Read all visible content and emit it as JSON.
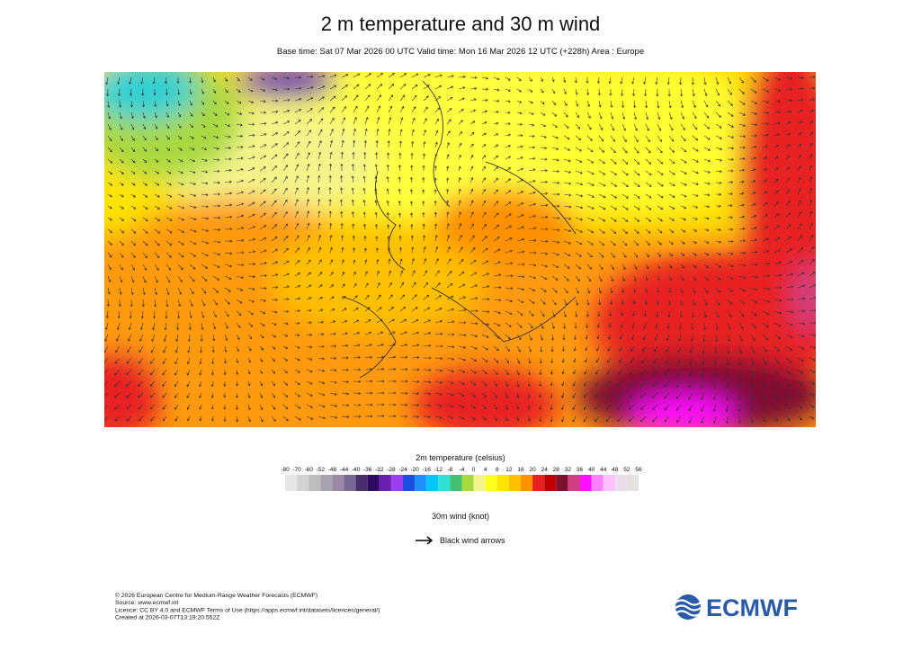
{
  "header": {
    "title": "2 m temperature and 30 m wind",
    "subtitle": "Base time: Sat 07 Mar 2026 00 UTC Valid time: Mon 16 Mar 2026 12 UTC (+228h) Area : Europe"
  },
  "legend": {
    "temperature_title": "2m temperature (celsius)",
    "ticks": [
      -80,
      -70,
      -60,
      -52,
      -48,
      -44,
      -40,
      -36,
      -32,
      -28,
      -24,
      -20,
      -16,
      -12,
      -8,
      -4,
      0,
      4,
      8,
      12,
      16,
      20,
      24,
      28,
      32,
      36,
      40,
      44,
      48,
      52,
      56
    ],
    "colors": [
      "#e6e6e6",
      "#d2d2d2",
      "#bdbdbd",
      "#aaa2b2",
      "#9a8aa8",
      "#7a6896",
      "#4a2e6c",
      "#2e0a62",
      "#6a1fb0",
      "#9a40f0",
      "#1a50e0",
      "#1e90ff",
      "#00c8ff",
      "#30e0d0",
      "#40c070",
      "#a8d840",
      "#f4f48a",
      "#ffff20",
      "#ffe400",
      "#ffc000",
      "#ff9000",
      "#e82020",
      "#c00000",
      "#801030",
      "#d04080",
      "#ff10ff",
      "#ff80ff",
      "#ffc0ff",
      "#eadcea",
      "#e2e2e2"
    ],
    "wind_title": "30m wind (knot)",
    "wind_arrow_label": "Black wind arrows"
  },
  "footer": {
    "lines": [
      "© 2026 European Centre for Medium-Range Weather Forecasts (ECMWF)",
      "Source: www.ecmwf.int",
      "Licence: CC BY 4.0 and ECMWF Terms of Use (https://apps.ecmwf.int/datasets/licences/general/)",
      "Created at 2026-03-07T13:19:20.552Z"
    ]
  },
  "logo": "ECMWF"
}
